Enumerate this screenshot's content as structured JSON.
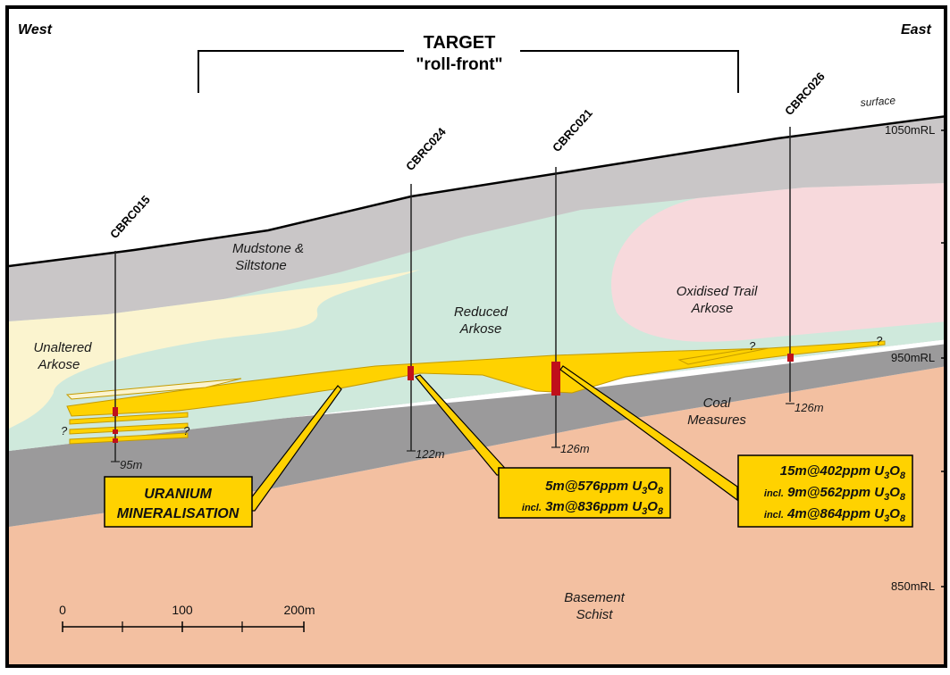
{
  "header": {
    "west": "West",
    "east": "East",
    "target_line1": "TARGET",
    "target_line2": "\"roll-front\""
  },
  "elevation": {
    "surface": "surface",
    "rl_1050": "1050mRL",
    "rl_950": "950mRL",
    "rl_850": "850mRL"
  },
  "units": {
    "mudstone_l1": "Mudstone &",
    "mudstone_l2": "Siltstone",
    "unaltered_l1": "Unaltered",
    "unaltered_l2": "Arkose",
    "reduced_l1": "Reduced",
    "reduced_l2": "Arkose",
    "oxidised_l1": "Oxidised Trail",
    "oxidised_l2": "Arkose",
    "coal_l1": "Coal",
    "coal_l2": "Measures",
    "basement_l1": "Basement",
    "basement_l2": "Schist"
  },
  "holes": {
    "cbrc015": {
      "name": "CBRC015",
      "depth": "95m"
    },
    "cbrc024": {
      "name": "CBRC024",
      "depth": "122m"
    },
    "cbrc021": {
      "name": "CBRC021",
      "depth": "126m"
    },
    "cbrc026": {
      "name": "CBRC026",
      "depth": "126m"
    }
  },
  "question_mark": "?",
  "callouts": {
    "uranium_l1": "URANIUM",
    "uranium_l2": "MINERALISATION",
    "c024": {
      "main_value": "5m@576ppm U",
      "incl_prefix": "incl.",
      "incl_value": "3m@836ppm U"
    },
    "c021": {
      "main_value": "15m@402ppm U",
      "incl_prefix": "incl.",
      "incl1_value": "9m@562ppm U",
      "incl2_value": "4m@864ppm U"
    },
    "oxide_o": "O",
    "sub3": "3",
    "sub8": "8"
  },
  "scale": {
    "t0": "0",
    "t100": "100",
    "t200": "200m"
  },
  "colors": {
    "mudstone": "#c9c6c7",
    "unaltered": "#fbf4cf",
    "reduced": "#cfe9dc",
    "oxidised": "#f7d9dc",
    "mineralised": "#ffd200",
    "coal": "#9b9a9b",
    "basement": "#f3c0a1",
    "sky": "#ffffff",
    "callout_fill": "#ffd200",
    "ore_intercept": "#c0101a"
  }
}
